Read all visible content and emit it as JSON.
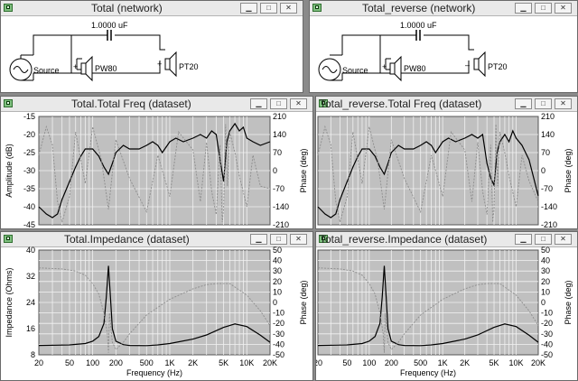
{
  "windows": {
    "net1_title": "Total (network)",
    "net2_title": "Total_reverse (network)",
    "freq1_title": "Total.Total Freq (dataset)",
    "freq2_title": "Total_reverse.Total Freq (dataset)",
    "imp1_title": "Total.Impedance (dataset)",
    "imp2_title": "Total_reverse.Impedance (dataset)"
  },
  "network": {
    "capacitor": "1.0000 uF",
    "source": "Source",
    "woofer": "PW80",
    "tweeter": "PT20",
    "plus": "+",
    "minus": "–"
  },
  "colors": {
    "plot_bg": "#c0c0c0",
    "grid": "#f2f2f2",
    "amplitude": "#000000",
    "phase": "#8c8c8c"
  },
  "freq_axes": {
    "ylabel": "Amplitude (dB)",
    "y2label": "Phase (deg)",
    "yticks": [
      "-15",
      "-20",
      "-25",
      "-30",
      "-35",
      "-40",
      "-45"
    ],
    "y2ticks": [
      "210",
      "140",
      "70",
      "0",
      "-70",
      "-140",
      "-210"
    ]
  },
  "imp_axes": {
    "ylabel": "Impedance (Ohms)",
    "y2label": "Phase (deg)",
    "xlabel": "Frequency (Hz)",
    "yticks": [
      "40",
      "32",
      "24",
      "16",
      "8"
    ],
    "y2ticks": [
      "50",
      "40",
      "30",
      "20",
      "10",
      "0",
      "-10",
      "-20",
      "-30",
      "-40",
      "-50"
    ],
    "xticks": [
      "20",
      "50",
      "100",
      "200",
      "500",
      "1K",
      "2K",
      "5K",
      "10K",
      "20K"
    ]
  },
  "chart_data": [
    {
      "type": "line",
      "xscale": "log",
      "xlim": [
        20,
        20000
      ],
      "ylim": [
        -45,
        -15
      ],
      "y2lim": [
        -210,
        210
      ],
      "ylabel": "Amplitude (dB)",
      "y2label": "Phase (deg)",
      "grid": true,
      "series": [
        {
          "axis": "y",
          "x": [
            20,
            25,
            30,
            35,
            40,
            50,
            60,
            70,
            80,
            100,
            120,
            140,
            160,
            180,
            200,
            250,
            300,
            400,
            500,
            600,
            700,
            800,
            1000,
            1200,
            1500,
            2000,
            2500,
            3000,
            3500,
            4000,
            4500,
            5000,
            5500,
            6000,
            7000,
            8000,
            9000,
            10000,
            12000,
            15000,
            20000
          ],
          "values": [
            -40,
            -42,
            -43,
            -42,
            -38,
            -33,
            -29,
            -26,
            -24,
            -24,
            -26,
            -29,
            -31,
            -28,
            -25,
            -23,
            -24,
            -24,
            -23,
            -22,
            -23,
            -25,
            -22,
            -21,
            -22,
            -21,
            -20,
            -21,
            -19,
            -20,
            -27,
            -33,
            -22,
            -19,
            -17,
            -19,
            -18,
            -21,
            -22,
            -23,
            -22
          ]
        },
        {
          "axis": "y2",
          "x": [
            20,
            25,
            30,
            35,
            40,
            50,
            60,
            80,
            100,
            130,
            160,
            200,
            300,
            500,
            700,
            1000,
            1300,
            2000,
            2500,
            3000,
            3500,
            4000,
            4500,
            4800,
            5000,
            5300,
            5600,
            6000,
            7000,
            8000,
            10000,
            12000,
            15000,
            20000
          ],
          "values": [
            60,
            170,
            100,
            -120,
            -200,
            -100,
            150,
            -50,
            170,
            40,
            -150,
            120,
            -30,
            -160,
            60,
            -100,
            150,
            80,
            -120,
            110,
            -80,
            -170,
            100,
            -200,
            -150,
            180,
            -60,
            150,
            70,
            -20,
            -140,
            60,
            -60,
            -70
          ]
        }
      ]
    },
    {
      "type": "line",
      "xscale": "log",
      "xlim": [
        20,
        20000
      ],
      "ylim": [
        -45,
        -15
      ],
      "y2lim": [
        -210,
        210
      ],
      "ylabel": "Amplitude (dB)",
      "y2label": "Phase (deg)",
      "grid": true,
      "series": [
        {
          "axis": "y",
          "x": [
            20,
            25,
            30,
            35,
            40,
            50,
            60,
            70,
            80,
            100,
            120,
            140,
            160,
            180,
            200,
            250,
            300,
            400,
            500,
            600,
            700,
            800,
            1000,
            1200,
            1500,
            2000,
            2500,
            3000,
            3500,
            4000,
            4500,
            5000,
            5500,
            6000,
            7000,
            8000,
            9000,
            10000,
            12000,
            15000,
            20000
          ],
          "values": [
            -40,
            -42,
            -43,
            -42,
            -38,
            -33,
            -29,
            -26,
            -24,
            -24,
            -26,
            -29,
            -31,
            -28,
            -25,
            -23,
            -24,
            -24,
            -23,
            -22,
            -23,
            -25,
            -22,
            -21,
            -22,
            -21,
            -20,
            -21,
            -20,
            -28,
            -32,
            -34,
            -25,
            -22,
            -20,
            -22,
            -19,
            -21,
            -23,
            -27,
            -37
          ]
        },
        {
          "axis": "y2",
          "x": [
            20,
            25,
            30,
            35,
            40,
            50,
            60,
            80,
            100,
            130,
            160,
            200,
            300,
            500,
            700,
            1000,
            1300,
            2000,
            2500,
            3000,
            3500,
            4000,
            4500,
            4800,
            5000,
            5300,
            5600,
            6000,
            7000,
            8000,
            10000,
            12000,
            15000,
            20000
          ],
          "values": [
            60,
            170,
            100,
            -120,
            -200,
            -100,
            150,
            -50,
            170,
            40,
            -150,
            120,
            -30,
            -160,
            60,
            -100,
            150,
            80,
            -120,
            110,
            -80,
            -170,
            100,
            -200,
            -150,
            180,
            -60,
            150,
            70,
            -20,
            -140,
            60,
            -40,
            -120
          ]
        }
      ]
    },
    {
      "type": "line",
      "xscale": "log",
      "xlim": [
        20,
        20000
      ],
      "ylim": [
        4,
        44
      ],
      "y2lim": [
        -50,
        50
      ],
      "xlabel": "Frequency (Hz)",
      "ylabel": "Impedance (Ohms)",
      "y2label": "Phase (deg)",
      "grid": true,
      "series": [
        {
          "axis": "y",
          "x": [
            20,
            50,
            80,
            100,
            120,
            140,
            150,
            160,
            170,
            180,
            200,
            250,
            300,
            500,
            700,
            1000,
            2000,
            3000,
            5000,
            7000,
            10000,
            15000,
            20000
          ],
          "values": [
            7.6,
            7.8,
            8.3,
            9.2,
            11,
            16,
            26,
            38,
            26,
            14,
            9.2,
            7.9,
            7.6,
            7.5,
            7.8,
            8.3,
            10,
            11.6,
            14.5,
            15.8,
            14.8,
            11.5,
            8.8
          ]
        },
        {
          "axis": "y2",
          "x": [
            20,
            40,
            60,
            80,
            100,
            120,
            140,
            155,
            160,
            165,
            180,
            200,
            250,
            300,
            500,
            1000,
            2000,
            3000,
            4000,
            6000,
            10000,
            15000,
            20000
          ],
          "values": [
            33,
            32,
            30,
            26,
            18,
            8,
            -10,
            -30,
            -48,
            -10,
            -38,
            -45,
            -38,
            -30,
            -12,
            3,
            13,
            17,
            18,
            18,
            7,
            -8,
            -22
          ]
        }
      ]
    },
    {
      "type": "line",
      "xscale": "log",
      "xlim": [
        20,
        20000
      ],
      "ylim": [
        4,
        44
      ],
      "y2lim": [
        -50,
        50
      ],
      "xlabel": "Frequency (Hz)",
      "ylabel": "Impedance (Ohms)",
      "y2label": "Phase (deg)",
      "grid": true,
      "series": [
        {
          "axis": "y",
          "x": [
            20,
            50,
            80,
            100,
            120,
            140,
            150,
            160,
            170,
            180,
            200,
            250,
            300,
            500,
            700,
            1000,
            2000,
            3000,
            5000,
            7000,
            10000,
            15000,
            20000
          ],
          "values": [
            7.6,
            7.8,
            8.3,
            9.2,
            11,
            16,
            26,
            38,
            26,
            14,
            9.2,
            7.9,
            7.6,
            7.5,
            7.8,
            8.3,
            10,
            11.6,
            14.5,
            15.8,
            14.8,
            11.5,
            8.8
          ]
        },
        {
          "axis": "y2",
          "x": [
            20,
            40,
            60,
            80,
            100,
            120,
            140,
            155,
            160,
            165,
            180,
            200,
            250,
            300,
            500,
            1000,
            2000,
            3000,
            4000,
            6000,
            10000,
            15000,
            20000
          ],
          "values": [
            33,
            32,
            30,
            26,
            18,
            8,
            -10,
            -30,
            -48,
            -10,
            -38,
            -45,
            -38,
            -30,
            -12,
            3,
            13,
            17,
            18,
            18,
            7,
            -8,
            -22
          ]
        }
      ]
    }
  ]
}
